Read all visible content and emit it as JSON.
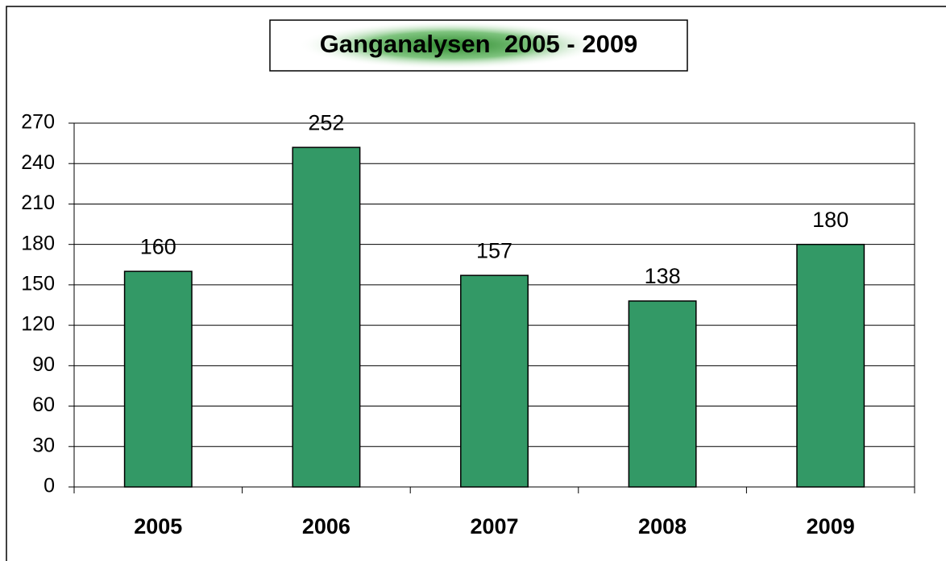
{
  "chart_data": {
    "type": "bar",
    "title": "Ganganalysen  2005 - 2009",
    "categories": [
      "2005",
      "2006",
      "2007",
      "2008",
      "2009"
    ],
    "values": [
      160,
      252,
      157,
      138,
      180
    ],
    "color": "#339966",
    "ylim": [
      0,
      270
    ],
    "yticks": [
      0,
      30,
      60,
      90,
      120,
      150,
      180,
      210,
      240,
      270
    ],
    "grid": true
  }
}
